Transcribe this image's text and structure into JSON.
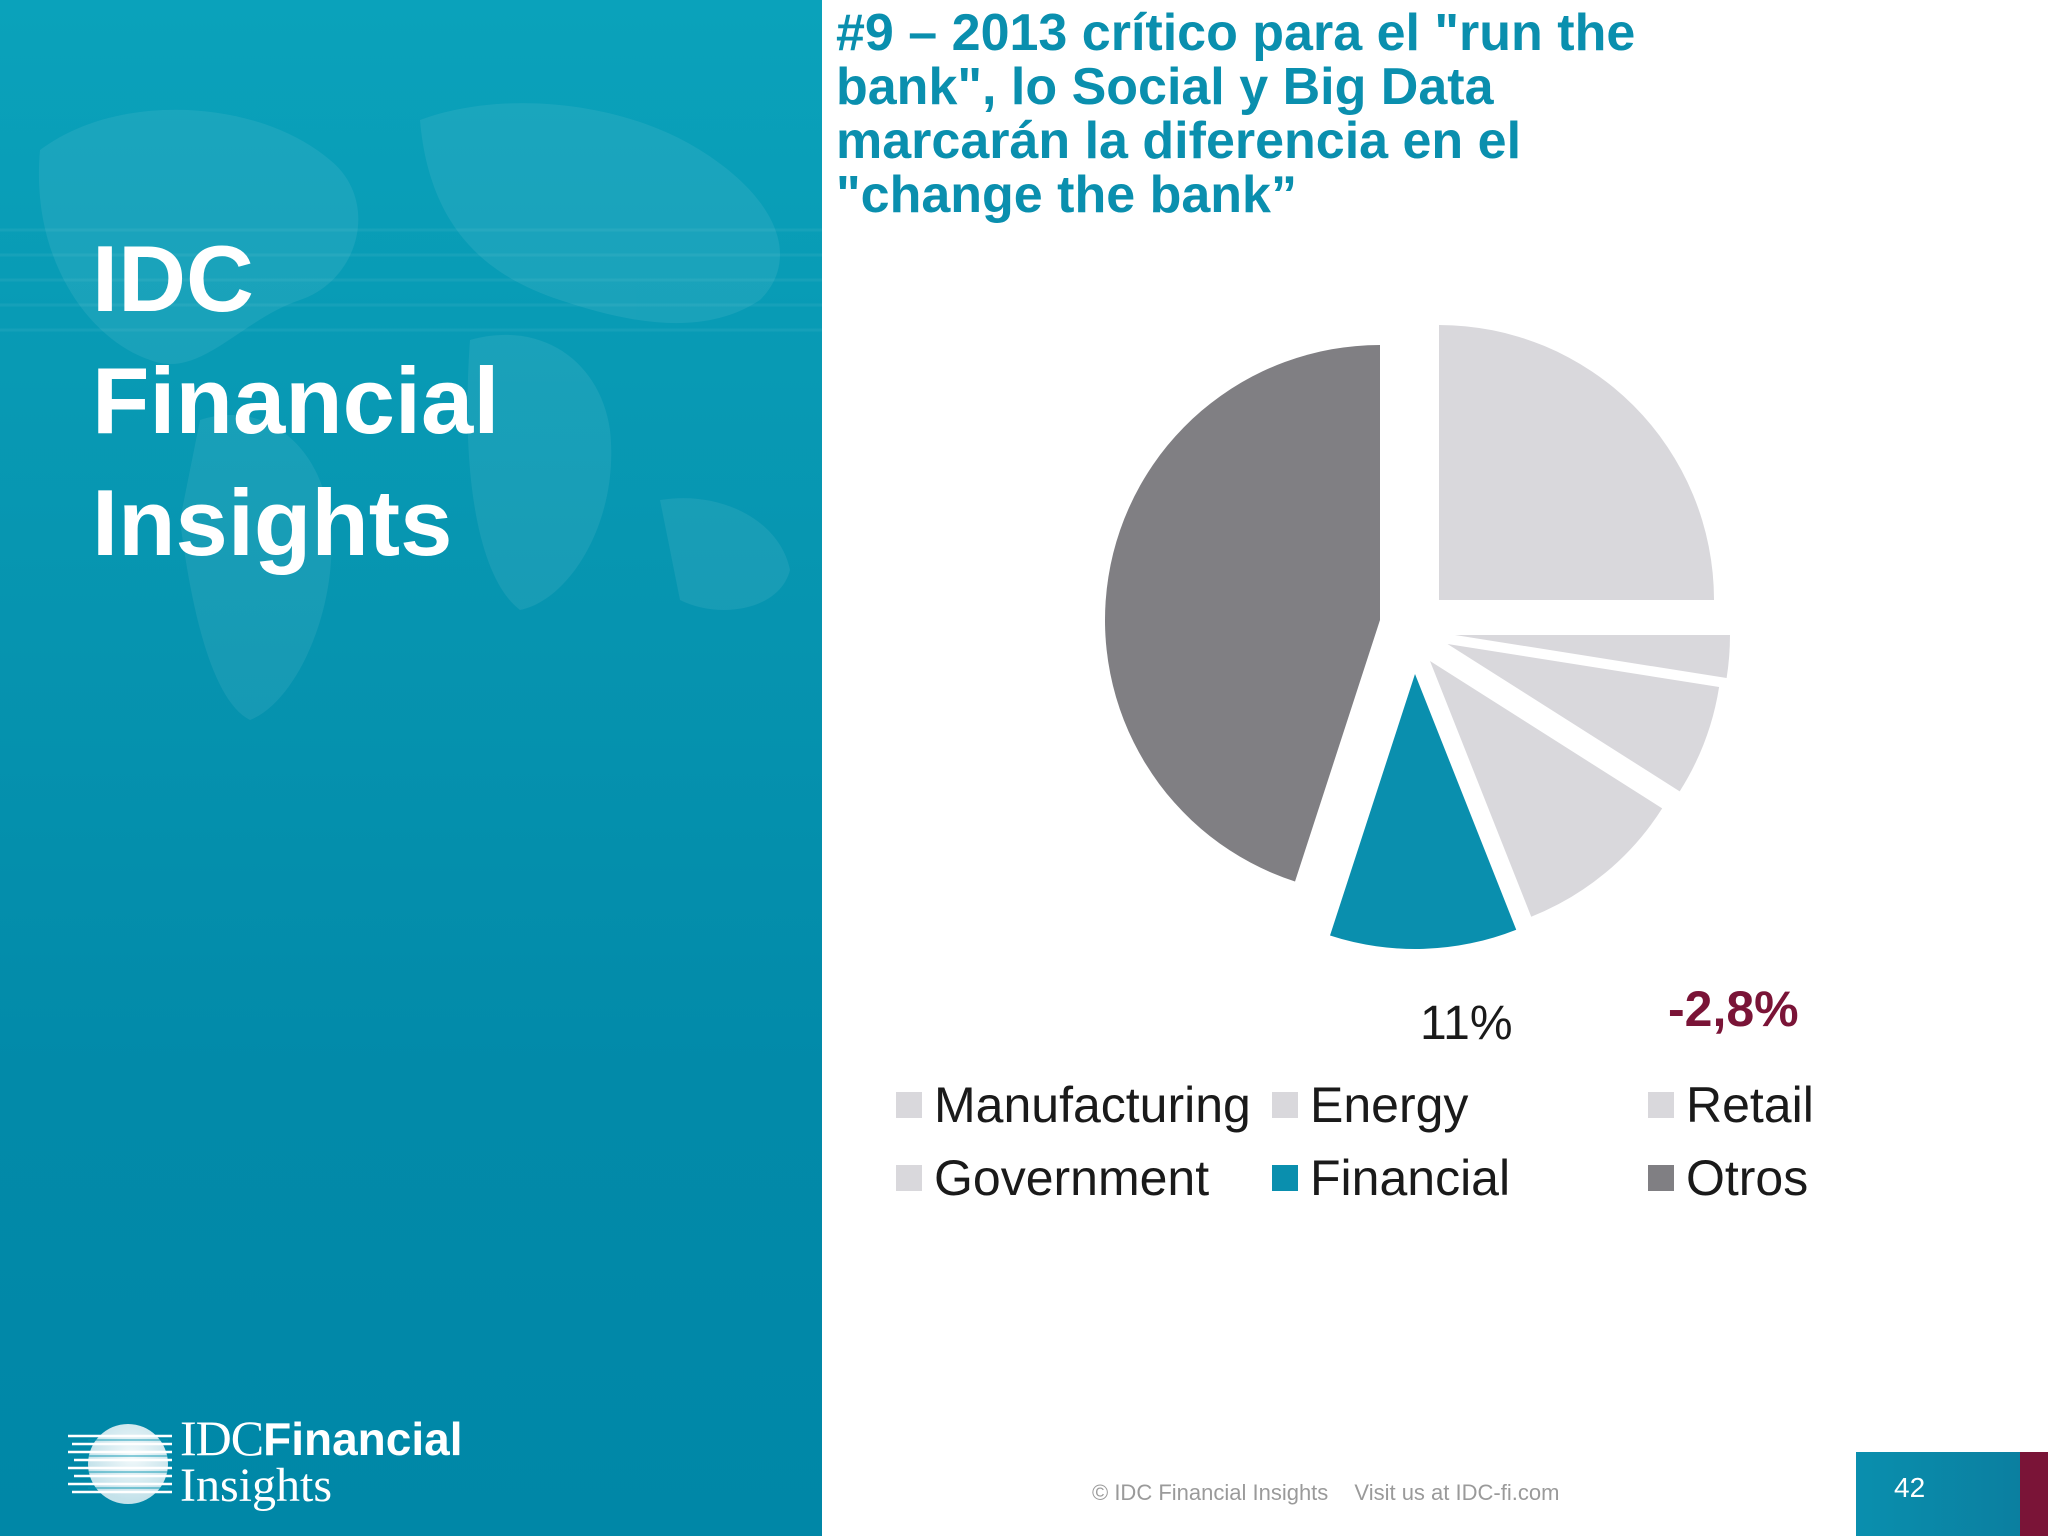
{
  "brand": {
    "title_lines": [
      "IDC",
      "Financial",
      "Insights"
    ],
    "logo": {
      "line1_idc": "IDC",
      "line1_financial": "Financial",
      "line2": "Insights"
    }
  },
  "slide": {
    "title": "#9 – 2013 crítico para el \"run the bank\", lo Social y Big Data marcarán la diferencia en el \"change the bank”",
    "page_number": "42"
  },
  "footer": {
    "copyright": "© IDC Financial Insights",
    "visit": "Visit us at IDC-fi.com"
  },
  "colors": {
    "brand_teal": "#0a8fae",
    "light_slice": "#d9d8dc",
    "dark_slice": "#807f83",
    "accent": "#7a1437"
  },
  "chart_data": {
    "type": "pie",
    "title": "",
    "categories": [
      "Manufacturing",
      "Energy",
      "Retail",
      "Government",
      "Financial",
      "Otros"
    ],
    "values": [
      25,
      2.5,
      6.5,
      10,
      11,
      45
    ],
    "colors": [
      "#d9d8dc",
      "#d9d8dc",
      "#d9d8dc",
      "#d9d8dc",
      "#0a8fae",
      "#807f83"
    ],
    "annotations": {
      "financial_value": "11%",
      "change": "-2,8%"
    },
    "legend": {
      "placement": "bottom",
      "items": [
        {
          "label": "Manufacturing",
          "color": "#d9d8dc"
        },
        {
          "label": "Energy",
          "color": "#d9d8dc"
        },
        {
          "label": "Retail",
          "color": "#d9d8dc"
        },
        {
          "label": "Government",
          "color": "#d9d8dc"
        },
        {
          "label": "Financial",
          "color": "#0a8fae"
        },
        {
          "label": "Otros",
          "color": "#807f83"
        }
      ]
    }
  }
}
